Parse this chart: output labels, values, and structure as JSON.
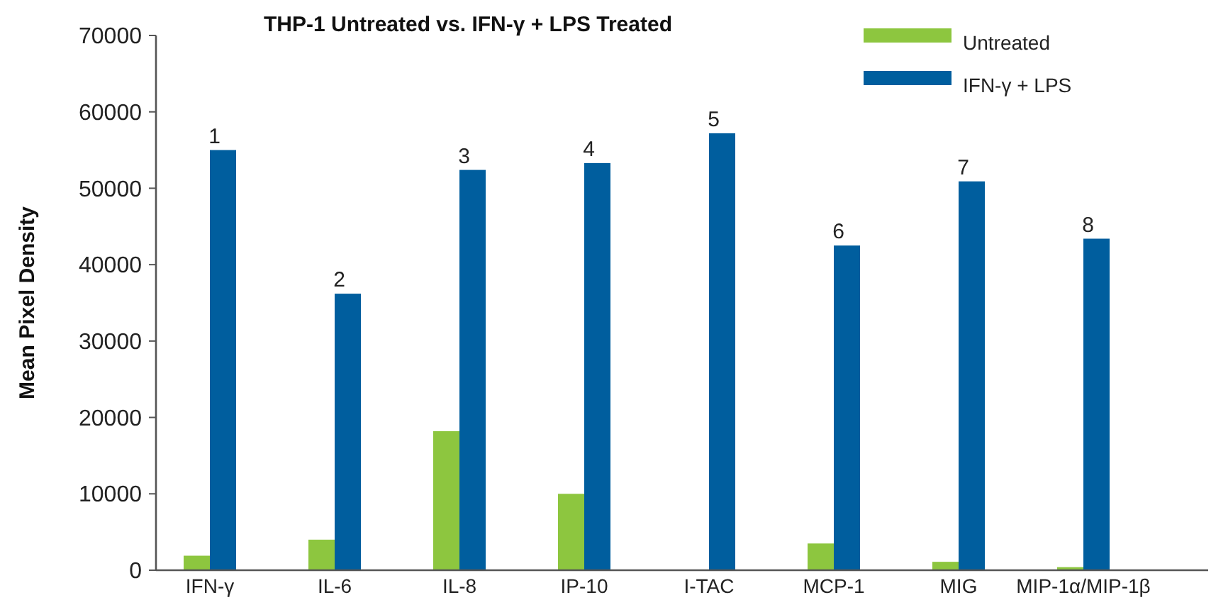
{
  "chart_data": {
    "type": "bar",
    "title": "THP-1 Untreated vs. IFN-γ + LPS Treated",
    "ylabel": "Mean Pixel Density",
    "categories": [
      "IFN-γ",
      "IL-6",
      "IL-8",
      "IP-10",
      "I-TAC",
      "MCP-1",
      "MIG",
      "MIP-1α/MIP-1β"
    ],
    "series": [
      {
        "name": "Untreated",
        "color": "#8dc63f",
        "values": [
          1900,
          4000,
          18200,
          10000,
          0,
          3500,
          1100,
          400
        ]
      },
      {
        "name": "IFN-γ + LPS",
        "color": "#005e9e",
        "values": [
          55000,
          36200,
          52400,
          53300,
          57200,
          42500,
          50900,
          43400
        ]
      }
    ],
    "ylim": [
      0,
      70000
    ],
    "yticks": [
      0,
      10000,
      20000,
      30000,
      40000,
      50000,
      60000,
      70000
    ],
    "grid": false,
    "legend": "top right",
    "annotations": [
      {
        "text": "1",
        "x": "IFN-γ",
        "y": 55000
      },
      {
        "text": "2",
        "x": "IL-6",
        "y": 36200
      },
      {
        "text": "3",
        "x": "IL-8",
        "y": 52400
      },
      {
        "text": "4",
        "x": "IP-10",
        "y": 53300
      },
      {
        "text": "5",
        "x": "I-TAC",
        "y": 57200
      },
      {
        "text": "6",
        "x": "MCP-1",
        "y": 42500
      },
      {
        "text": "7",
        "x": "MIG",
        "y": 50900
      },
      {
        "text": "8",
        "x": "MIP-1α/MIP-1β",
        "y": 43400
      }
    ]
  }
}
